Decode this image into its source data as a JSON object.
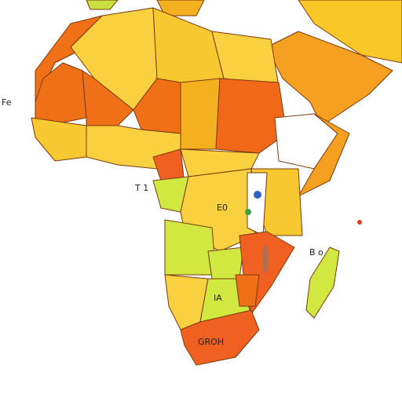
{
  "labels": {
    "left": "Fe",
    "west": "T 1",
    "center": "E0",
    "south": "IA",
    "bottom": "GROH",
    "east": "B o"
  }
}
